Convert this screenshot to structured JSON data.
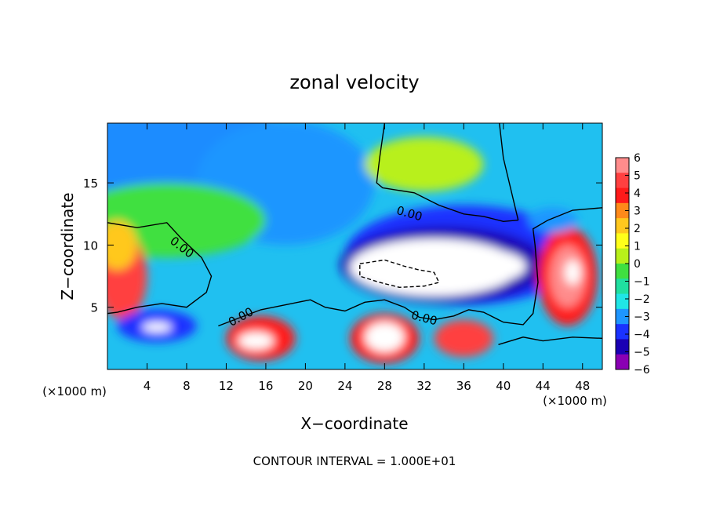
{
  "chart_data": {
    "type": "heatmap",
    "title": "zonal velocity",
    "xlabel": "X−coordinate",
    "ylabel": "Z−coordinate",
    "x_unit_label": "(×1000 m)",
    "y_unit_label": "(×1000 m)",
    "footer": "CONTOUR INTERVAL = 1.000E+01",
    "xlim": [
      0,
      50
    ],
    "ylim": [
      0,
      19.8
    ],
    "x_ticks": [
      4,
      8,
      12,
      16,
      20,
      24,
      28,
      32,
      36,
      40,
      44,
      48
    ],
    "y_ticks": [
      5,
      10,
      15
    ],
    "colorbar": {
      "ticks": [
        6,
        5,
        4,
        3,
        2,
        1,
        0,
        -1,
        -2,
        -3,
        -4,
        -5,
        -6
      ],
      "tick_labels": [
        "6",
        "5",
        "4",
        "3",
        "2",
        "1",
        "0",
        "−1",
        "−2",
        "−3",
        "−4",
        "−5",
        "−6"
      ],
      "colors": [
        "#ff8c8c",
        "#ff4040",
        "#ff1a1a",
        "#ff8a1a",
        "#ffc81e",
        "#ffff1a",
        "#b8f01a",
        "#40e040",
        "#20e0a0",
        "#20e6e6",
        "#1e96ff",
        "#1a32ff",
        "#1a00b4",
        "#8a00b4"
      ]
    },
    "contour_labels": [
      {
        "text": "0.00",
        "x": 7.5,
        "y": 9.8,
        "angle": 38
      },
      {
        "text": "0.00",
        "x": 13.5,
        "y": 4.2,
        "angle": -28
      },
      {
        "text": "0.00",
        "x": 30.5,
        "y": 12.5,
        "angle": 16
      },
      {
        "text": "0.00",
        "x": 32,
        "y": 4.1,
        "angle": 15
      }
    ],
    "contour_polylines": [
      {
        "style": "solid",
        "points": [
          [
            0,
            11.8
          ],
          [
            3,
            11.4
          ],
          [
            6,
            11.8
          ],
          [
            7.5,
            10.5
          ],
          [
            9.5,
            9
          ],
          [
            10.5,
            7.5
          ],
          [
            10,
            6.2
          ],
          [
            8,
            5
          ],
          [
            5.5,
            5.3
          ],
          [
            3,
            5
          ],
          [
            1,
            4.6
          ],
          [
            0,
            4.5
          ]
        ]
      },
      {
        "style": "solid",
        "points": [
          [
            28,
            19.8
          ],
          [
            27.5,
            17
          ],
          [
            27.2,
            15
          ],
          [
            27.8,
            14.6
          ],
          [
            31,
            14.2
          ],
          [
            33.5,
            13.2
          ],
          [
            36,
            12.5
          ],
          [
            38,
            12.3
          ],
          [
            40,
            11.9
          ],
          [
            41.5,
            12
          ]
        ]
      },
      {
        "style": "solid",
        "points": [
          [
            39.6,
            19.8
          ],
          [
            40,
            17
          ],
          [
            41.5,
            12
          ]
        ]
      },
      {
        "style": "solid",
        "points": [
          [
            11.2,
            3.5
          ],
          [
            13.5,
            4.2
          ],
          [
            15.5,
            4.8
          ],
          [
            18,
            5.2
          ],
          [
            20.5,
            5.6
          ],
          [
            22,
            5
          ],
          [
            24,
            4.7
          ],
          [
            26,
            5.4
          ],
          [
            28,
            5.6
          ],
          [
            30,
            5
          ],
          [
            31.5,
            4.2
          ],
          [
            33,
            4
          ],
          [
            35,
            4.3
          ],
          [
            36.5,
            4.8
          ],
          [
            38,
            4.6
          ],
          [
            40,
            3.8
          ],
          [
            42,
            3.6
          ],
          [
            43,
            4.5
          ],
          [
            43.5,
            7
          ],
          [
            43.2,
            10
          ],
          [
            43,
            11.3
          ],
          [
            44.5,
            12
          ],
          [
            47,
            12.8
          ],
          [
            50,
            13
          ]
        ]
      },
      {
        "style": "solid",
        "points": [
          [
            39.5,
            2
          ],
          [
            42,
            2.6
          ],
          [
            44,
            2.3
          ],
          [
            47,
            2.6
          ],
          [
            50,
            2.5
          ]
        ]
      },
      {
        "style": "dashed",
        "points": [
          [
            25.5,
            8.5
          ],
          [
            28,
            8.8
          ],
          [
            30,
            8.3
          ],
          [
            31.5,
            8
          ],
          [
            33,
            7.8
          ],
          [
            33.5,
            7
          ],
          [
            32,
            6.7
          ],
          [
            29.5,
            6.6
          ],
          [
            27.5,
            7
          ],
          [
            25.5,
            7.5
          ],
          [
            25.5,
            8.5
          ]
        ]
      }
    ],
    "blobs": [
      {
        "c": "#1e8cff",
        "x": 8,
        "y": 17,
        "rx": 14,
        "ry": 4
      },
      {
        "c": "#1e96ff",
        "x": 18,
        "y": 15,
        "rx": 9,
        "ry": 5
      },
      {
        "c": "#40e040",
        "x": 6,
        "y": 12,
        "rx": 10,
        "ry": 3
      },
      {
        "c": "#b8f01a",
        "x": 32,
        "y": 16.5,
        "rx": 6,
        "ry": 2.2
      },
      {
        "c": "#1a32ff",
        "x": 36,
        "y": 9.2,
        "rx": 12,
        "ry": 4
      },
      {
        "c": "#1a00b4",
        "x": 34,
        "y": 8.4,
        "rx": 10.5,
        "ry": 3.1
      },
      {
        "c": "#ffffff",
        "x": 33,
        "y": 8.2,
        "rx": 8.5,
        "ry": 2.3
      },
      {
        "c": "#ffffff",
        "x": 37.5,
        "y": 8.3,
        "rx": 4.8,
        "ry": 1.4
      },
      {
        "c": "#ff4040",
        "x": 1.5,
        "y": 7.5,
        "rx": 2.5,
        "ry": 3.5
      },
      {
        "c": "#ffc81e",
        "x": 1,
        "y": 10,
        "rx": 2,
        "ry": 2
      },
      {
        "c": "#ff1a1a",
        "x": 46.5,
        "y": 7.5,
        "rx": 3,
        "ry": 4
      },
      {
        "c": "#ff8c8c",
        "x": 46.5,
        "y": 7.5,
        "rx": 1.8,
        "ry": 2.5
      },
      {
        "c": "#ffffff",
        "x": 47,
        "y": 7.8,
        "rx": 0.8,
        "ry": 1
      },
      {
        "c": "#1a32ff",
        "x": 5,
        "y": 3.5,
        "rx": 4,
        "ry": 1.3
      },
      {
        "c": "#ffffff",
        "x": 5,
        "y": 3.4,
        "rx": 1.5,
        "ry": 0.4
      },
      {
        "c": "#ff1a1a",
        "x": 15.5,
        "y": 2.5,
        "rx": 3.5,
        "ry": 1.8
      },
      {
        "c": "#ffffff",
        "x": 15,
        "y": 2.3,
        "rx": 1.8,
        "ry": 0.7
      },
      {
        "c": "#ff1a1a",
        "x": 28,
        "y": 2.5,
        "rx": 3.5,
        "ry": 2
      },
      {
        "c": "#ffffff",
        "x": 28,
        "y": 2.6,
        "rx": 2,
        "ry": 1.2
      },
      {
        "c": "#ff4040",
        "x": 36,
        "y": 2.5,
        "rx": 3,
        "ry": 1.5
      },
      {
        "c": "#1e96ff",
        "x": 45,
        "y": 12,
        "rx": 2.5,
        "ry": 1
      }
    ]
  }
}
